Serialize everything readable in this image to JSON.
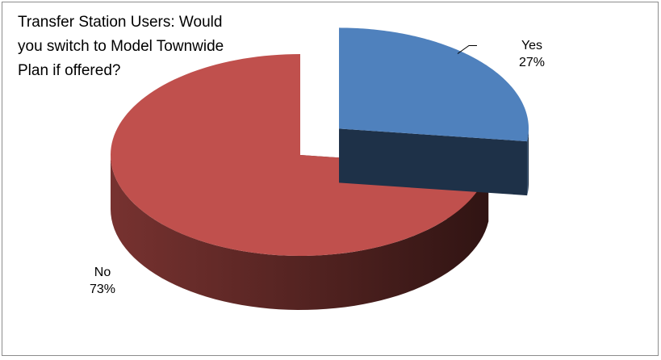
{
  "chart_data": {
    "type": "pie",
    "style": "3d-exploded",
    "title": "Transfer Station Users:  Would\nyou switch to Model Townwide\nPlan if offered?",
    "slices": [
      {
        "label": "Yes",
        "value": 27,
        "value_label": "27%",
        "color": "#4f81bd",
        "exploded": true
      },
      {
        "label": "No",
        "value": 73,
        "value_label": "73%",
        "color": "#c0504d",
        "exploded": false
      }
    ],
    "legend": "none",
    "data_labels": "category and percentage"
  }
}
